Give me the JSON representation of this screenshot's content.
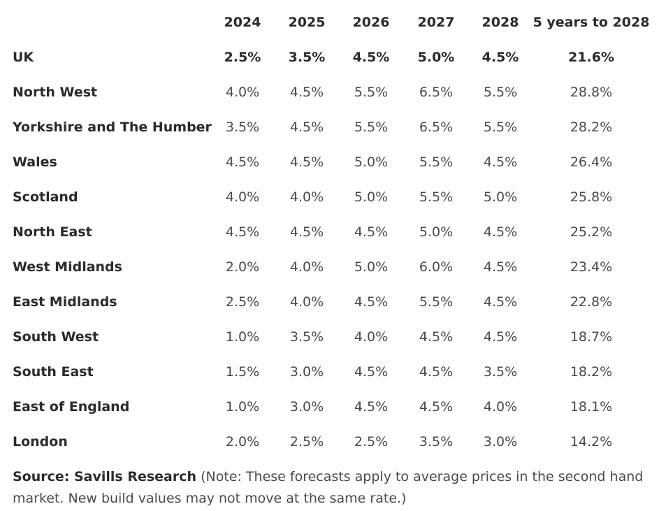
{
  "chart_data": {
    "type": "table",
    "title": "",
    "columns": [
      "2024",
      "2025",
      "2026",
      "2027",
      "2028",
      "5 years to 2028"
    ],
    "rows": [
      {
        "region": "UK",
        "values": [
          "2.5%",
          "3.5%",
          "4.5%",
          "5.0%",
          "4.5%",
          "21.6%"
        ],
        "bold": true
      },
      {
        "region": "North West",
        "values": [
          "4.0%",
          "4.5%",
          "5.5%",
          "6.5%",
          "5.5%",
          "28.8%"
        ]
      },
      {
        "region": "Yorkshire and The Humber",
        "values": [
          "3.5%",
          "4.5%",
          "5.5%",
          "6.5%",
          "5.5%",
          "28.2%"
        ]
      },
      {
        "region": "Wales",
        "values": [
          "4.5%",
          "4.5%",
          "5.0%",
          "5.5%",
          "4.5%",
          "26.4%"
        ]
      },
      {
        "region": "Scotland",
        "values": [
          "4.0%",
          "4.0%",
          "5.0%",
          "5.5%",
          "5.0%",
          "25.8%"
        ]
      },
      {
        "region": "North East",
        "values": [
          "4.5%",
          "4.5%",
          "4.5%",
          "5.0%",
          "4.5%",
          "25.2%"
        ]
      },
      {
        "region": "West Midlands",
        "values": [
          "2.0%",
          "4.0%",
          "5.0%",
          "6.0%",
          "4.5%",
          "23.4%"
        ]
      },
      {
        "region": "East Midlands",
        "values": [
          "2.5%",
          "4.0%",
          "4.5%",
          "5.5%",
          "4.5%",
          "22.8%"
        ]
      },
      {
        "region": "South West",
        "values": [
          "1.0%",
          "3.5%",
          "4.0%",
          "4.5%",
          "4.5%",
          "18.7%"
        ]
      },
      {
        "region": "South East",
        "values": [
          "1.5%",
          "3.0%",
          "4.5%",
          "4.5%",
          "3.5%",
          "18.2%"
        ]
      },
      {
        "region": "East of England",
        "values": [
          "1.0%",
          "3.0%",
          "4.5%",
          "4.5%",
          "4.0%",
          "18.1%"
        ]
      },
      {
        "region": "London",
        "values": [
          "2.0%",
          "2.5%",
          "2.5%",
          "3.5%",
          "3.0%",
          "14.2%"
        ]
      }
    ],
    "source_label": "Source: Savills Research",
    "source_note": " (Note: These forecasts apply to average prices in the second hand market. New build values may not move at the same rate.)"
  },
  "colors": {
    "text": "#4a4a4a",
    "label_text": "#2b2b2b",
    "background": "#ffffff"
  }
}
